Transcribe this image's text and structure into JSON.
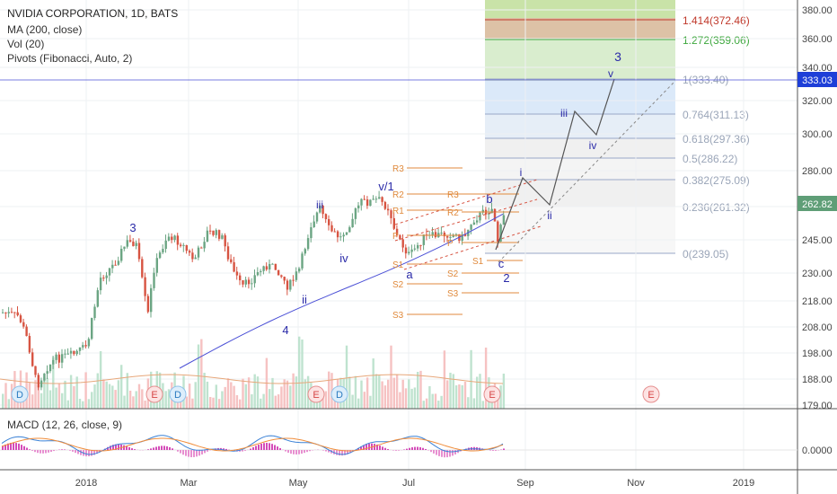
{
  "legend": {
    "symbol_line": "NVIDIA CORPORATION, 1D, BATS",
    "ma_line": "MA (200, close)",
    "vol_line": "Vol (20)",
    "pivots_line": "Pivots (Fibonacci, Auto, 2)"
  },
  "macd_label": "MACD (12, 26, close, 9)",
  "colors": {
    "up": "#6ba583",
    "down": "#d75442",
    "ma": "#4b50d6",
    "wave_label": "#2a2aa8",
    "pivot": "#e08a3c",
    "price_tag": "#1e3fd8",
    "fib_green": "#3ea83e",
    "fib_red": "#c0392b"
  },
  "chart_data": {
    "type": "candlestick",
    "symbol": "NVIDIA CORPORATION",
    "interval": "1D",
    "exchange": "BATS",
    "x_tick_labels": [
      "2018",
      "Mar",
      "May",
      "Jul",
      "Sep",
      "Nov",
      "2019"
    ],
    "y_tick_labels": [
      "380.00",
      "360.00",
      "340.00",
      "320.00",
      "300.00",
      "280.00",
      "260.00",
      "245.00",
      "230.00",
      "218.00",
      "208.00",
      "198.00",
      "188.00",
      "179.00"
    ],
    "macd_tick_labels": [
      "0.0000"
    ],
    "current_price": "333.03",
    "last_close": "262.82",
    "fib_levels": [
      {
        "label": "1.414(372.46)",
        "value": 372.46,
        "color": "red"
      },
      {
        "label": "1.272(359.06)",
        "value": 359.06,
        "color": "green"
      },
      {
        "label": "1(333.40)",
        "value": 333.4
      },
      {
        "label": "0.764(311.13)",
        "value": 311.13
      },
      {
        "label": "0.618(297.36)",
        "value": 297.36
      },
      {
        "label": "0.5(286.22)",
        "value": 286.22
      },
      {
        "label": "0.382(275.09)",
        "value": 275.09
      },
      {
        "label": "0.236(261.32)",
        "value": 261.32
      },
      {
        "label": "0(239.05)",
        "value": 239.05
      }
    ],
    "pivot_labels": [
      "R3",
      "R2",
      "R1",
      "P",
      "S1",
      "S2",
      "S3"
    ],
    "wave_labels": [
      "3",
      "4",
      "ii",
      "iii",
      "iv",
      "v/1",
      "a",
      "b",
      "c",
      "2",
      "i",
      "ii",
      "iii",
      "iv",
      "v",
      "3"
    ],
    "event_markers": [
      "D",
      "E",
      "D",
      "E",
      "D",
      "E",
      "E"
    ]
  }
}
